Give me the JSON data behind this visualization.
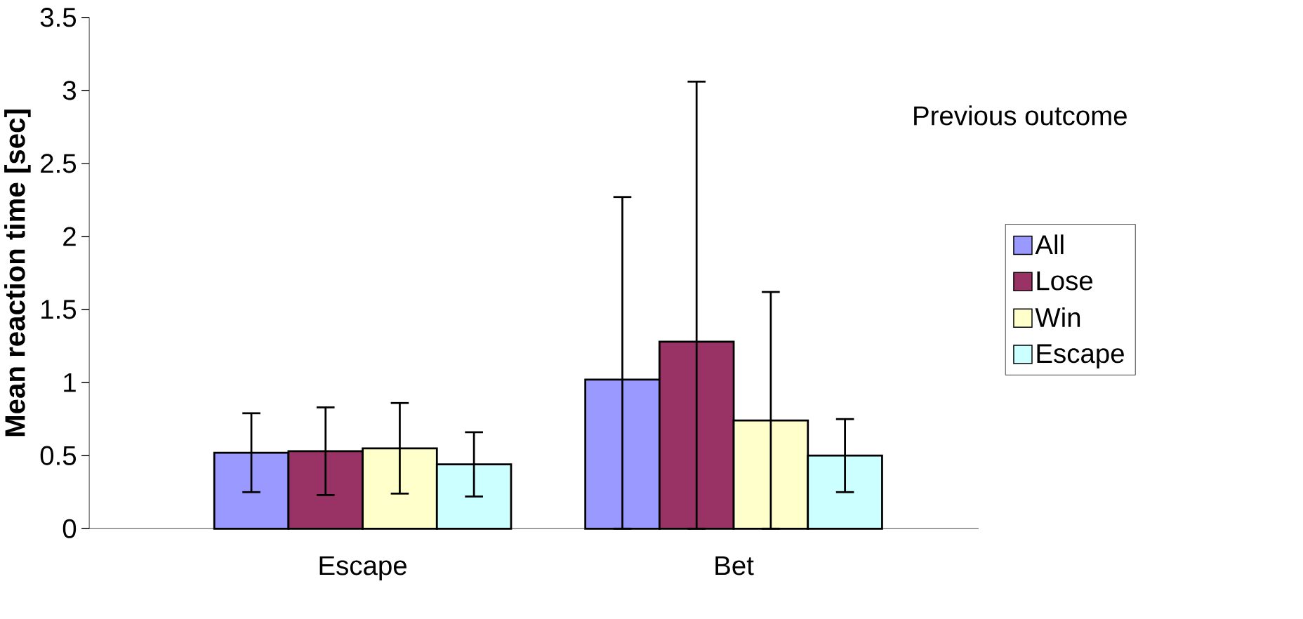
{
  "chart_data": {
    "type": "bar",
    "ylabel": "Mean reaction time [sec]",
    "legend_title": "Previous outcome",
    "categories": [
      "Escape",
      "Bet"
    ],
    "series": [
      {
        "name": "All",
        "color": "#9999ff",
        "values": [
          0.52,
          1.02
        ],
        "errors": [
          0.27,
          [
            0,
            2.27
          ]
        ]
      },
      {
        "name": "Lose",
        "color": "#993366",
        "values": [
          0.53,
          1.28
        ],
        "errors": [
          0.3,
          [
            0,
            3.06
          ]
        ]
      },
      {
        "name": "Win",
        "color": "#ffffcc",
        "values": [
          0.55,
          0.74
        ],
        "errors": [
          0.31,
          [
            0,
            1.62
          ]
        ]
      },
      {
        "name": "Escape",
        "color": "#ccffff",
        "values": [
          0.44,
          0.5
        ],
        "errors": [
          0.22,
          0.25
        ]
      }
    ],
    "ylim": [
      0,
      3.5
    ],
    "yticks": [
      0,
      0.5,
      1,
      1.5,
      2,
      2.5,
      3,
      3.5
    ],
    "grid": false,
    "legend": "right"
  }
}
